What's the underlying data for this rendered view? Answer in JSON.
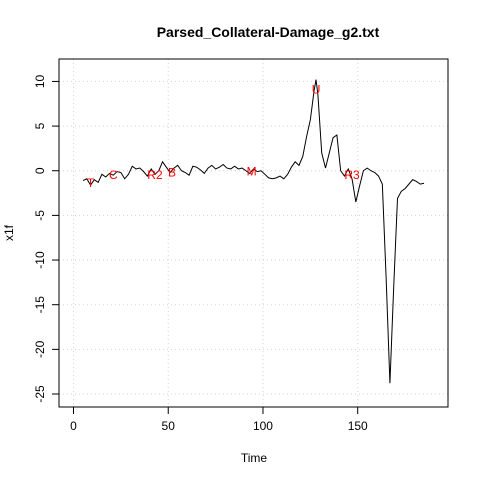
{
  "chart_data": {
    "type": "line",
    "title": "Parsed_Collateral-Damage_g2.txt",
    "xlabel": "Time",
    "ylabel": "x1f",
    "xlim": [
      0,
      190
    ],
    "ylim": [
      -25,
      11
    ],
    "grid": true,
    "xticks": [
      0,
      50,
      100,
      150
    ],
    "yticks": [
      -25,
      -20,
      -15,
      -10,
      -5,
      0,
      5,
      10
    ],
    "series": [
      {
        "x": [
          5,
          7,
          9,
          11,
          13,
          15,
          17,
          19,
          21,
          23,
          25,
          27,
          29,
          31,
          33,
          35,
          37,
          39,
          41,
          43,
          45,
          47,
          49,
          51,
          53,
          55,
          57,
          59,
          61,
          63,
          65,
          67,
          69,
          71,
          73,
          75,
          77,
          79,
          81,
          83,
          85,
          87,
          89,
          91,
          93,
          95,
          97,
          99,
          101,
          103,
          105,
          107,
          109,
          111,
          113,
          115,
          117,
          119,
          121,
          123,
          125,
          127,
          128,
          129,
          131,
          133,
          135,
          137,
          139,
          141,
          143,
          145,
          147,
          149,
          151,
          153,
          155,
          157,
          159,
          161,
          163,
          165,
          167,
          169,
          171,
          173,
          175,
          177,
          179,
          181,
          183,
          185
        ],
        "y": [
          -1.1,
          -0.9,
          -1.6,
          -1.0,
          -1.3,
          -0.4,
          -0.7,
          -0.3,
          -0.5,
          -0.1,
          -0.2,
          -0.9,
          -0.4,
          0.5,
          0.2,
          0.3,
          -0.1,
          -0.6,
          0.2,
          -0.4,
          0.0,
          1.0,
          0.4,
          -0.2,
          0.3,
          0.6,
          0.0,
          -0.2,
          -0.5,
          0.5,
          0.4,
          0.1,
          -0.3,
          0.3,
          0.6,
          0.2,
          0.4,
          0.7,
          0.3,
          0.2,
          0.5,
          0.2,
          0.3,
          0.0,
          -0.3,
          0.2,
          -0.1,
          0.0,
          -0.4,
          -0.8,
          -0.9,
          -0.8,
          -0.6,
          -0.9,
          -0.4,
          0.4,
          1.0,
          0.6,
          1.6,
          3.8,
          5.7,
          9.0,
          10.2,
          8.5,
          2.0,
          0.3,
          2.0,
          3.7,
          4.0,
          0.0,
          -0.6,
          0.2,
          -0.9,
          -3.5,
          -1.7,
          0.0,
          0.3,
          0.0,
          -0.2,
          -0.6,
          -1.5,
          -12.0,
          -23.8,
          -13.0,
          -3.1,
          -2.3,
          -2.0,
          -1.5,
          -1.0,
          -1.2,
          -1.5,
          -1.4
        ]
      }
    ],
    "annotations": [
      {
        "label": "T",
        "x": 9,
        "y": -1.4
      },
      {
        "label": "C",
        "x": 21,
        "y": -0.5
      },
      {
        "label": "R2",
        "x": 43,
        "y": -0.5
      },
      {
        "label": "B",
        "x": 52,
        "y": -0.2
      },
      {
        "label": "M",
        "x": 94,
        "y": -0.1
      },
      {
        "label": "U",
        "x": 128,
        "y": 9.1
      },
      {
        "label": "R3",
        "x": 147,
        "y": -0.5
      }
    ]
  }
}
